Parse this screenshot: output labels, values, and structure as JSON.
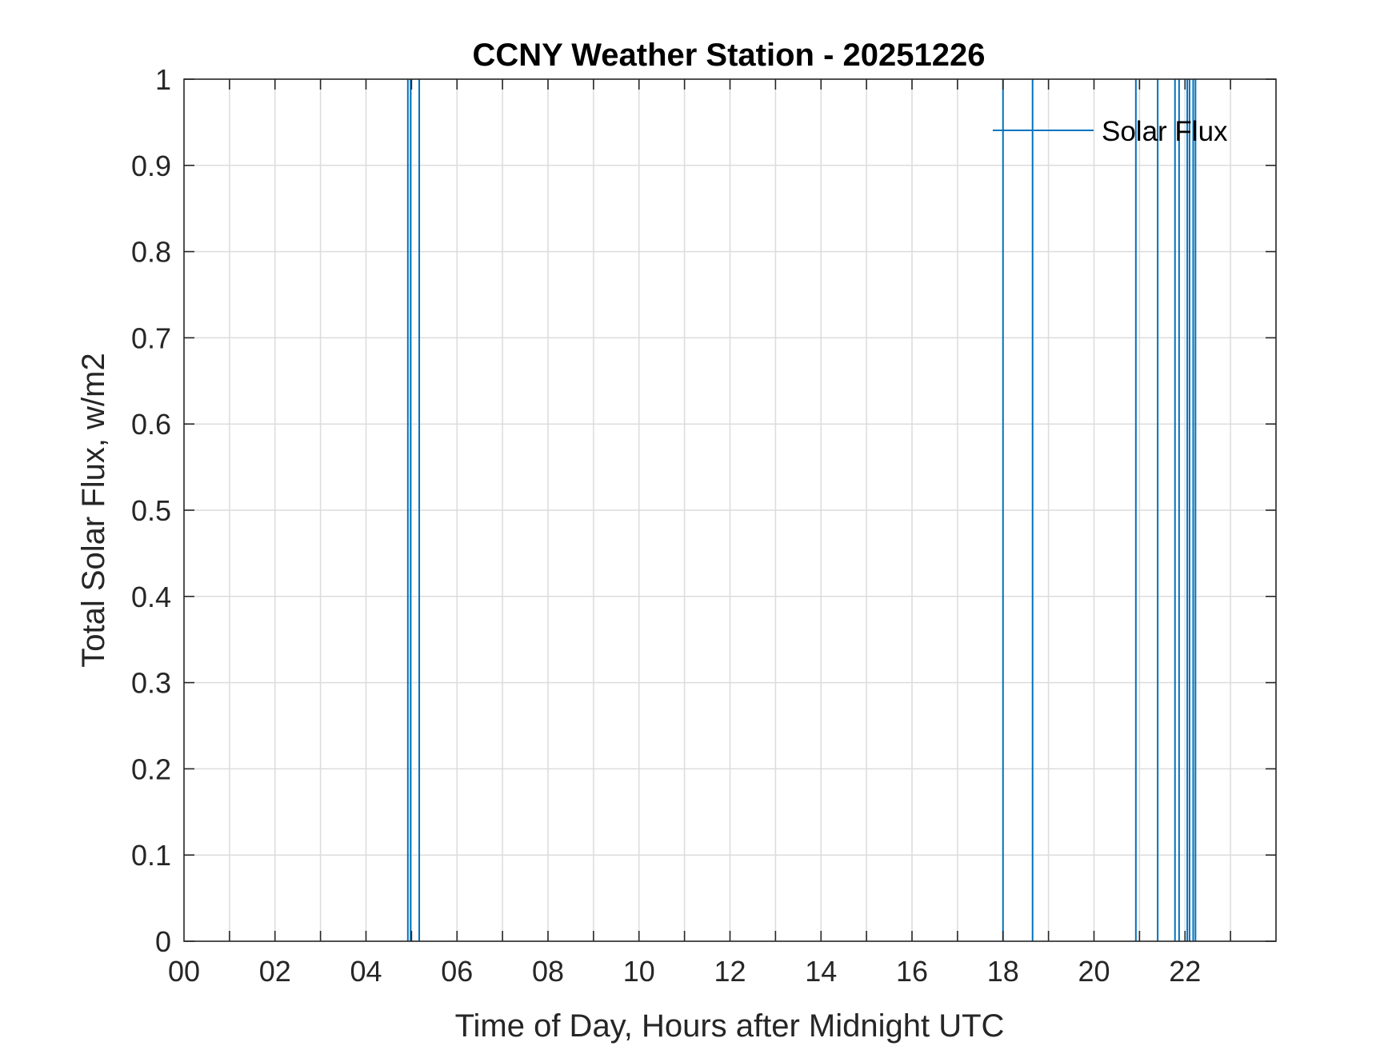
{
  "chart_data": {
    "type": "line",
    "title": "CCNY Weather Station - 20251226",
    "xlabel": "Time of Day, Hours after Midnight UTC",
    "ylabel": "Total Solar Flux, w/m2",
    "xlim": [
      0,
      24
    ],
    "ylim": [
      0,
      1
    ],
    "x_major_ticks": [
      0,
      2,
      4,
      6,
      8,
      10,
      12,
      14,
      16,
      18,
      20,
      22
    ],
    "x_tick_labels": [
      "00",
      "02",
      "04",
      "06",
      "08",
      "10",
      "12",
      "14",
      "16",
      "18",
      "20",
      "22"
    ],
    "x_grid_step": 1,
    "y_ticks": [
      0,
      0.1,
      0.2,
      0.3,
      0.4,
      0.5,
      0.6,
      0.7,
      0.8,
      0.9,
      1
    ],
    "y_tick_labels": [
      "0",
      "0.1",
      "0.2",
      "0.3",
      "0.4",
      "0.5",
      "0.6",
      "0.7",
      "0.8",
      "0.9",
      "1"
    ],
    "grid": true,
    "legend": {
      "placement": "top-right",
      "entries": [
        "Solar Flux"
      ]
    },
    "series": [
      {
        "name": "Solar Flux",
        "color": "#0072BD",
        "spike_times": [
          4.92,
          4.98,
          5.17,
          18.0,
          18.65,
          20.92,
          21.4,
          21.78,
          21.87,
          22.05,
          22.1,
          22.18,
          22.23
        ],
        "spike_value": 1,
        "baseline_value": 0
      }
    ]
  }
}
